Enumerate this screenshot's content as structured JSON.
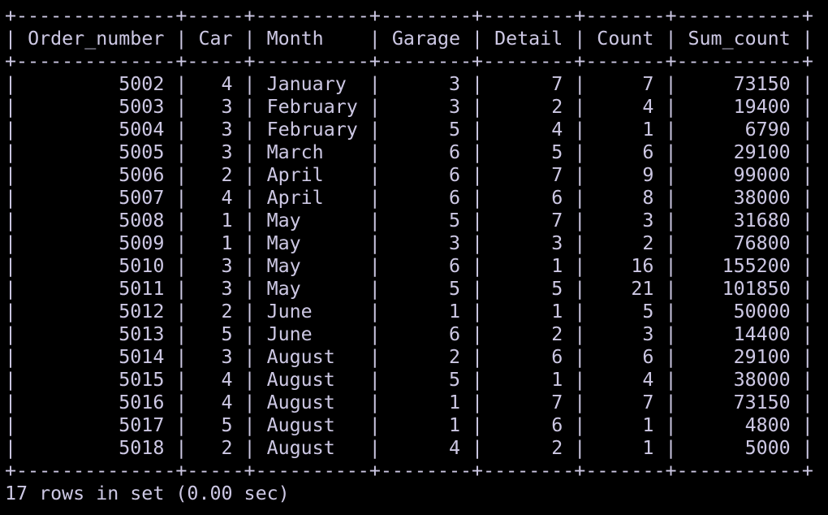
{
  "table": {
    "columns": [
      "Order_number",
      "Car",
      "Month",
      "Garage",
      "Detail",
      "Count",
      "Sum_count"
    ],
    "rows": [
      [
        5002,
        4,
        "January",
        3,
        7,
        7,
        73150
      ],
      [
        5003,
        3,
        "February",
        3,
        2,
        4,
        19400
      ],
      [
        5004,
        3,
        "February",
        5,
        4,
        1,
        6790
      ],
      [
        5005,
        3,
        "March",
        6,
        5,
        6,
        29100
      ],
      [
        5006,
        2,
        "April",
        6,
        7,
        9,
        99000
      ],
      [
        5007,
        4,
        "April",
        6,
        6,
        8,
        38000
      ],
      [
        5008,
        1,
        "May",
        5,
        7,
        3,
        31680
      ],
      [
        5009,
        1,
        "May",
        3,
        3,
        2,
        76800
      ],
      [
        5010,
        3,
        "May",
        6,
        1,
        16,
        155200
      ],
      [
        5011,
        3,
        "May",
        5,
        5,
        21,
        101850
      ],
      [
        5012,
        2,
        "June",
        1,
        1,
        5,
        50000
      ],
      [
        5013,
        5,
        "June",
        6,
        2,
        3,
        14400
      ],
      [
        5014,
        3,
        "August",
        2,
        6,
        6,
        29100
      ],
      [
        5015,
        4,
        "August",
        5,
        1,
        4,
        38000
      ],
      [
        5016,
        4,
        "August",
        1,
        7,
        7,
        73150
      ],
      [
        5017,
        5,
        "August",
        1,
        6,
        1,
        4800
      ],
      [
        5018,
        2,
        "August",
        4,
        2,
        1,
        5000
      ]
    ]
  },
  "footer": "17 rows in set (0.00 sec)"
}
